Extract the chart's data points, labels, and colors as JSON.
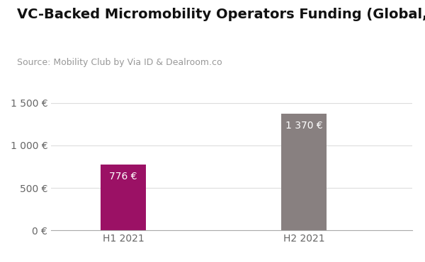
{
  "title": "VC-Backed Micromobility Operators Funding (Global, in €M)",
  "source": "Source: Mobility Club by Via ID & Dealroom.co",
  "categories": [
    "H1 2021",
    "H2 2021"
  ],
  "values": [
    776,
    1370
  ],
  "bar_colors": [
    "#9B1165",
    "#888080"
  ],
  "bar_labels": [
    "776 €",
    "1 370 €"
  ],
  "label_color": "#ffffff",
  "ylim": [
    0,
    1600
  ],
  "yticks": [
    0,
    500,
    1000,
    1500
  ],
  "ytick_labels": [
    "0 €",
    "500 €",
    "1 000 €",
    "1 500 €"
  ],
  "background_color": "#ffffff",
  "title_fontsize": 14,
  "source_fontsize": 9,
  "tick_fontsize": 10,
  "bar_label_fontsize": 10,
  "bar_width": 0.25
}
